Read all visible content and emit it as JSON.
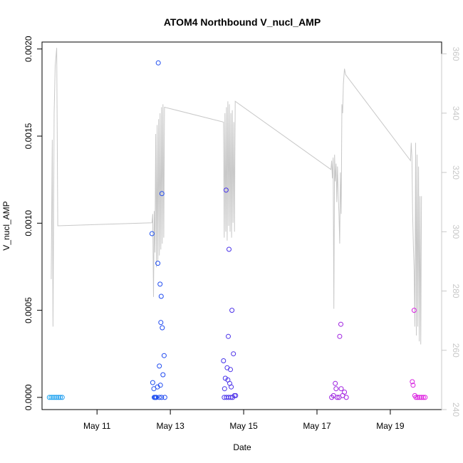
{
  "chart_data": {
    "type": "scatter",
    "title": "ATOM4 Northbound V_nucl_AMP",
    "xlabel": "Date",
    "ylabel": "V_nucl_AMP",
    "xlim": [
      9.5,
      20.4
    ],
    "ylim": [
      -7e-05,
      0.00204
    ],
    "y2lim": [
      240,
      364
    ],
    "x_ticks": [
      {
        "value": 11,
        "label": "May 11"
      },
      {
        "value": 13,
        "label": "May 13"
      },
      {
        "value": 15,
        "label": "May 15"
      },
      {
        "value": 17,
        "label": "May 17"
      },
      {
        "value": 19,
        "label": "May 19"
      }
    ],
    "y_ticks": [
      {
        "value": 0,
        "label": "0.0000"
      },
      {
        "value": 0.0005,
        "label": "0.0005"
      },
      {
        "value": 0.001,
        "label": "0.0010"
      },
      {
        "value": 0.0015,
        "label": "0.0015"
      },
      {
        "value": 0.002,
        "label": "0.0020"
      }
    ],
    "y2_ticks": [
      {
        "value": 240,
        "label": "240"
      },
      {
        "value": 260,
        "label": "260"
      },
      {
        "value": 280,
        "label": "280"
      },
      {
        "value": 300,
        "label": "300"
      },
      {
        "value": 320,
        "label": "320"
      },
      {
        "value": 340,
        "label": "340"
      },
      {
        "value": 360,
        "label": "360"
      }
    ],
    "series": [
      {
        "name": "V_nucl_AMP",
        "kind": "points",
        "color_gradient": [
          "#20a8f0",
          "#2040f0",
          "#8020e0",
          "#e020e0"
        ],
        "points": [
          {
            "x": 9.7,
            "y": 0
          },
          {
            "x": 9.75,
            "y": 0
          },
          {
            "x": 9.8,
            "y": 0
          },
          {
            "x": 9.85,
            "y": 0
          },
          {
            "x": 9.9,
            "y": 0
          },
          {
            "x": 9.95,
            "y": 0
          },
          {
            "x": 10.0,
            "y": 0
          },
          {
            "x": 10.05,
            "y": 0
          },
          {
            "x": 12.5,
            "y": 0.00094
          },
          {
            "x": 12.52,
            "y": 8.5e-05
          },
          {
            "x": 12.55,
            "y": 5e-05
          },
          {
            "x": 12.58,
            "y": 0
          },
          {
            "x": 12.62,
            "y": 0
          },
          {
            "x": 12.65,
            "y": 6e-05
          },
          {
            "x": 12.67,
            "y": 0.00192
          },
          {
            "x": 12.66,
            "y": 0.00077
          },
          {
            "x": 12.7,
            "y": 0.00018
          },
          {
            "x": 12.72,
            "y": 0.00065
          },
          {
            "x": 12.73,
            "y": 7e-05
          },
          {
            "x": 12.74,
            "y": 0.00043
          },
          {
            "x": 12.75,
            "y": 0.00058
          },
          {
            "x": 12.77,
            "y": 0.00117
          },
          {
            "x": 12.78,
            "y": 0.0004
          },
          {
            "x": 12.8,
            "y": 0.00013
          },
          {
            "x": 12.83,
            "y": 0.00024
          },
          {
            "x": 12.85,
            "y": 0
          },
          {
            "x": 12.56,
            "y": 0
          },
          {
            "x": 12.6,
            "y": 0
          },
          {
            "x": 12.7,
            "y": 0
          },
          {
            "x": 12.76,
            "y": 0
          },
          {
            "x": 14.45,
            "y": 0.00021
          },
          {
            "x": 14.48,
            "y": 5e-05
          },
          {
            "x": 14.5,
            "y": 0.00011
          },
          {
            "x": 14.52,
            "y": 0.00119
          },
          {
            "x": 14.55,
            "y": 0.00017
          },
          {
            "x": 14.57,
            "y": 0.0001
          },
          {
            "x": 14.58,
            "y": 0.00035
          },
          {
            "x": 14.6,
            "y": 0.00085
          },
          {
            "x": 14.62,
            "y": 8e-05
          },
          {
            "x": 14.64,
            "y": 0.00016
          },
          {
            "x": 14.66,
            "y": 6e-05
          },
          {
            "x": 14.68,
            "y": 0.0005
          },
          {
            "x": 14.72,
            "y": 0.00025
          },
          {
            "x": 14.75,
            "y": 1e-05
          },
          {
            "x": 14.78,
            "y": 1e-05
          },
          {
            "x": 14.47,
            "y": 0
          },
          {
            "x": 14.53,
            "y": 0
          },
          {
            "x": 14.59,
            "y": 0
          },
          {
            "x": 14.65,
            "y": 0
          },
          {
            "x": 14.7,
            "y": 0
          },
          {
            "x": 17.4,
            "y": 0
          },
          {
            "x": 17.45,
            "y": 1e-05
          },
          {
            "x": 17.5,
            "y": 8e-05
          },
          {
            "x": 17.52,
            "y": 5e-05
          },
          {
            "x": 17.55,
            "y": 0
          },
          {
            "x": 17.6,
            "y": 0
          },
          {
            "x": 17.62,
            "y": 0.00035
          },
          {
            "x": 17.65,
            "y": 0.00042
          },
          {
            "x": 17.66,
            "y": 5e-05
          },
          {
            "x": 17.7,
            "y": 1e-05
          },
          {
            "x": 17.75,
            "y": 3e-05
          },
          {
            "x": 17.8,
            "y": 0
          },
          {
            "x": 19.6,
            "y": 9e-05
          },
          {
            "x": 19.62,
            "y": 7e-05
          },
          {
            "x": 19.65,
            "y": 0.0005
          },
          {
            "x": 19.67,
            "y": 1e-05
          },
          {
            "x": 19.7,
            "y": 0
          },
          {
            "x": 19.75,
            "y": 0
          },
          {
            "x": 19.8,
            "y": 0
          },
          {
            "x": 19.85,
            "y": 0
          },
          {
            "x": 19.9,
            "y": 0
          },
          {
            "x": 19.95,
            "y": 0
          }
        ]
      },
      {
        "name": "secondary (right axis)",
        "kind": "line",
        "color": "#c8c8c8",
        "points": [
          {
            "x": 9.75,
            "y": 284
          },
          {
            "x": 9.78,
            "y": 331
          },
          {
            "x": 9.8,
            "y": 268
          },
          {
            "x": 9.83,
            "y": 340
          },
          {
            "x": 9.86,
            "y": 356
          },
          {
            "x": 9.9,
            "y": 362
          },
          {
            "x": 9.93,
            "y": 302
          },
          {
            "x": 12.5,
            "y": 303
          },
          {
            "x": 12.52,
            "y": 306
          },
          {
            "x": 12.54,
            "y": 278
          },
          {
            "x": 12.56,
            "y": 307
          },
          {
            "x": 12.58,
            "y": 293
          },
          {
            "x": 12.6,
            "y": 333
          },
          {
            "x": 12.62,
            "y": 288
          },
          {
            "x": 12.64,
            "y": 336
          },
          {
            "x": 12.66,
            "y": 290
          },
          {
            "x": 12.68,
            "y": 338
          },
          {
            "x": 12.7,
            "y": 292
          },
          {
            "x": 12.72,
            "y": 340
          },
          {
            "x": 12.74,
            "y": 294
          },
          {
            "x": 12.76,
            "y": 342
          },
          {
            "x": 12.78,
            "y": 296
          },
          {
            "x": 12.8,
            "y": 343
          },
          {
            "x": 12.82,
            "y": 298
          },
          {
            "x": 12.84,
            "y": 342
          },
          {
            "x": 14.45,
            "y": 337
          },
          {
            "x": 14.47,
            "y": 298
          },
          {
            "x": 14.49,
            "y": 340
          },
          {
            "x": 14.51,
            "y": 300
          },
          {
            "x": 14.53,
            "y": 342
          },
          {
            "x": 14.55,
            "y": 297
          },
          {
            "x": 14.57,
            "y": 344
          },
          {
            "x": 14.59,
            "y": 302
          },
          {
            "x": 14.61,
            "y": 343
          },
          {
            "x": 14.63,
            "y": 300
          },
          {
            "x": 14.65,
            "y": 340
          },
          {
            "x": 14.67,
            "y": 298
          },
          {
            "x": 14.69,
            "y": 341
          },
          {
            "x": 14.71,
            "y": 303
          },
          {
            "x": 14.73,
            "y": 337
          },
          {
            "x": 14.75,
            "y": 300
          },
          {
            "x": 14.77,
            "y": 344
          },
          {
            "x": 17.38,
            "y": 321
          },
          {
            "x": 17.4,
            "y": 324
          },
          {
            "x": 17.42,
            "y": 318
          },
          {
            "x": 17.44,
            "y": 325
          },
          {
            "x": 17.46,
            "y": 274
          },
          {
            "x": 17.48,
            "y": 326
          },
          {
            "x": 17.5,
            "y": 317
          },
          {
            "x": 17.52,
            "y": 323
          },
          {
            "x": 17.54,
            "y": 310
          },
          {
            "x": 17.56,
            "y": 322
          },
          {
            "x": 17.58,
            "y": 312
          },
          {
            "x": 17.6,
            "y": 306
          },
          {
            "x": 17.62,
            "y": 296
          },
          {
            "x": 17.64,
            "y": 320
          },
          {
            "x": 17.66,
            "y": 306
          },
          {
            "x": 17.68,
            "y": 343
          },
          {
            "x": 17.7,
            "y": 340
          },
          {
            "x": 17.72,
            "y": 350
          },
          {
            "x": 17.75,
            "y": 355
          },
          {
            "x": 17.78,
            "y": 353
          },
          {
            "x": 19.55,
            "y": 324
          },
          {
            "x": 19.57,
            "y": 330
          },
          {
            "x": 19.59,
            "y": 325
          },
          {
            "x": 19.61,
            "y": 306
          },
          {
            "x": 19.63,
            "y": 295
          },
          {
            "x": 19.65,
            "y": 287
          },
          {
            "x": 19.67,
            "y": 268
          },
          {
            "x": 19.69,
            "y": 330
          },
          {
            "x": 19.71,
            "y": 265
          },
          {
            "x": 19.73,
            "y": 326
          },
          {
            "x": 19.75,
            "y": 268
          },
          {
            "x": 19.77,
            "y": 322
          },
          {
            "x": 19.79,
            "y": 263
          },
          {
            "x": 19.81,
            "y": 312
          },
          {
            "x": 19.83,
            "y": 262
          },
          {
            "x": 19.85,
            "y": 312
          }
        ]
      }
    ]
  }
}
